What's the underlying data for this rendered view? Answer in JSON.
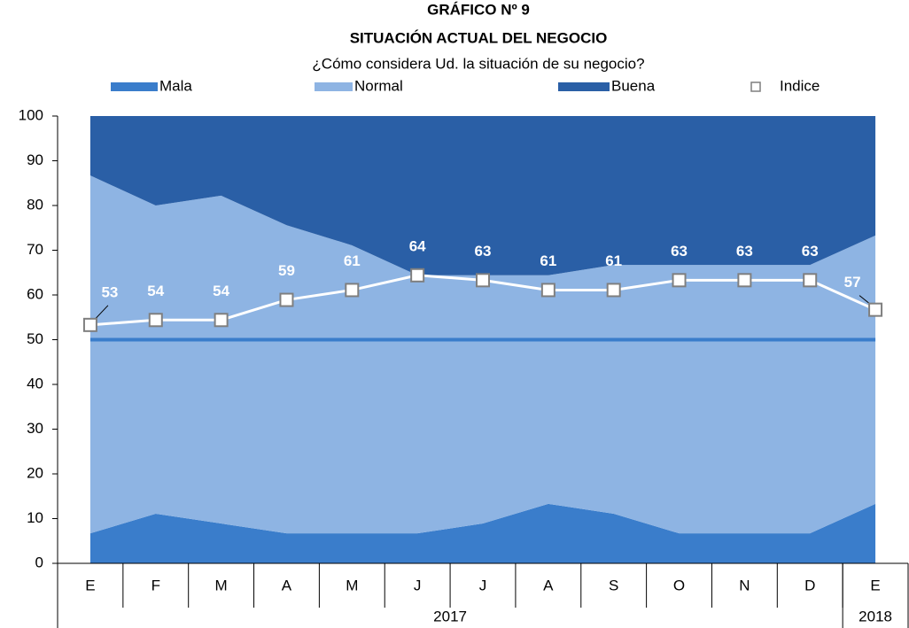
{
  "chart_data": {
    "type": "stacked_area_line",
    "title": "GRÁFICO Nº 9",
    "subtitle": "SITUACIÓN ACTUAL DEL NEGOCIO",
    "question": "¿Cómo considera Ud. la situación de su negocio?",
    "categories": [
      "E",
      "F",
      "M",
      "A",
      "M",
      "J",
      "J",
      "A",
      "S",
      "O",
      "N",
      "D",
      "E"
    ],
    "x_groups": [
      {
        "label": "2017",
        "span": 12
      },
      {
        "label": "2018",
        "span": 1
      }
    ],
    "series": [
      {
        "name": "Mala",
        "color": "#3a7dcb",
        "values": [
          6.7,
          11.1,
          8.9,
          6.7,
          6.7,
          6.7,
          8.9,
          13.3,
          11.1,
          6.7,
          6.7,
          6.7,
          13.3
        ]
      },
      {
        "name": "Normal",
        "color": "#8eb4e3",
        "values": [
          80,
          68.9,
          73.3,
          68.9,
          64.4,
          57.7,
          55.5,
          51.1,
          55.6,
          60,
          60,
          60,
          60
        ]
      },
      {
        "name": "Buena",
        "color": "#2a5fa6",
        "values": [
          13.3,
          20,
          17.8,
          24.4,
          28.9,
          35.6,
          35.6,
          35.6,
          33.3,
          33.3,
          33.3,
          33.3,
          26.7
        ]
      }
    ],
    "line": {
      "name": "Indice",
      "color": "#ffffff",
      "values": [
        53.3,
        54.4,
        54.4,
        58.9,
        61.1,
        64.4,
        63.3,
        61.1,
        61.1,
        63.3,
        63.3,
        63.3,
        56.7
      ],
      "value_labels": [
        "53",
        "54",
        "54",
        "59",
        "61",
        "64",
        "63",
        "61",
        "61",
        "63",
        "63",
        "63",
        "57"
      ]
    },
    "reference_line": {
      "value": 50,
      "color": "#3a7dcb"
    },
    "ylim": [
      0,
      100
    ],
    "yticks": [
      0,
      10,
      20,
      30,
      40,
      50,
      60,
      70,
      80,
      90,
      100
    ]
  }
}
